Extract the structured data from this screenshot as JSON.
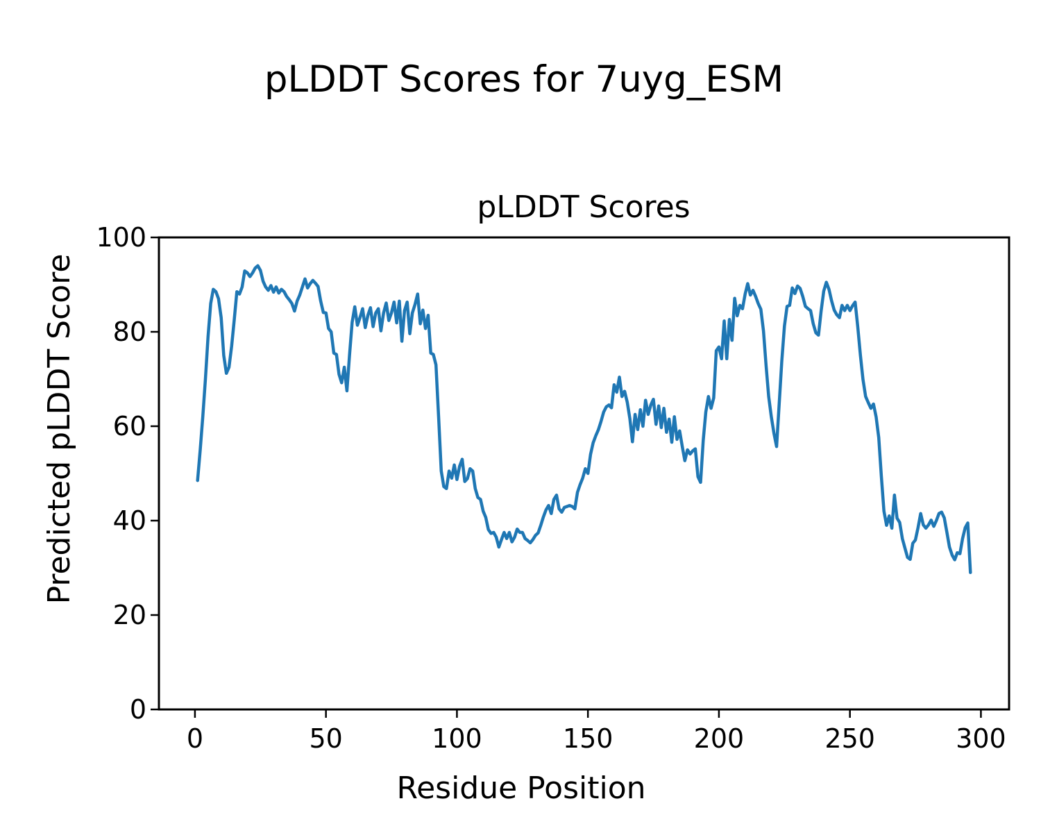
{
  "figure": {
    "suptitle": "pLDDT Scores for 7uyg_ESM",
    "background_color": "#ffffff"
  },
  "chart_data": {
    "type": "line",
    "title": "pLDDT Scores",
    "xlabel": "Residue Position",
    "ylabel": "Predicted pLDDT Score",
    "xlim": [
      -13.75,
      310.75
    ],
    "ylim": [
      0,
      100
    ],
    "xticks": [
      0,
      50,
      100,
      150,
      200,
      250,
      300
    ],
    "yticks": [
      0,
      20,
      40,
      60,
      80,
      100
    ],
    "grid": false,
    "legend_position": "none",
    "axis_color": "#000000",
    "series": [
      {
        "name": "pLDDT score",
        "color": "#1f77b4",
        "line_width": 4.5,
        "x_start": 1,
        "x_step": 1,
        "values": [
          48.5,
          55,
          62,
          70,
          79,
          86,
          89,
          88.5,
          87,
          83,
          75,
          71.2,
          72.5,
          77,
          82.5,
          88.5,
          88,
          89.5,
          92.9,
          92.5,
          91.7,
          92.5,
          93.5,
          94,
          93,
          90.7,
          89.5,
          88.8,
          89.8,
          88.4,
          89.5,
          88.2,
          89,
          88.5,
          87.5,
          86.8,
          86,
          84.4,
          86.5,
          87.8,
          89.5,
          91.2,
          89.3,
          90.2,
          90.9,
          90.3,
          89.6,
          86.5,
          84.1,
          84,
          80.7,
          80,
          75.5,
          75.2,
          71,
          69.2,
          72.5,
          67.5,
          75,
          82,
          85.3,
          81.4,
          83,
          84.9,
          80.9,
          83.5,
          85.1,
          81.1,
          84,
          84.9,
          80.2,
          84,
          86.1,
          82.4,
          84,
          86.3,
          81.9,
          86.5,
          78,
          84.5,
          86.3,
          79.6,
          84,
          85.8,
          88,
          81.7,
          84.6,
          80.7,
          83.5,
          75.5,
          75.2,
          73,
          62,
          50.5,
          47.2,
          46.8,
          50.5,
          49,
          51.8,
          48.7,
          51.5,
          53,
          48.3,
          48.9,
          51,
          50.5,
          46.8,
          44.9,
          44.5,
          42,
          40.7,
          38.1,
          37.3,
          37.5,
          36.5,
          34.4,
          36,
          37.5,
          36.2,
          37.5,
          35.5,
          36.5,
          38.2,
          37.5,
          37.5,
          36.2,
          35.8,
          35.3,
          36,
          36.9,
          37.4,
          39,
          40.8,
          42.3,
          43.2,
          41.5,
          44.5,
          45.4,
          42.5,
          41.8,
          42.8,
          43,
          43.2,
          43,
          42.5,
          46,
          47.6,
          49,
          51,
          50,
          54,
          56.5,
          58,
          59.3,
          61,
          63,
          64.1,
          64.5,
          63.9,
          68.8,
          67.2,
          70.4,
          66.3,
          67.4,
          65.1,
          61.6,
          56.7,
          62.5,
          59.3,
          63.5,
          60,
          65.5,
          62.5,
          64.5,
          65.7,
          60.4,
          64.3,
          59.7,
          63.8,
          58.7,
          61.5,
          56.6,
          62,
          57.2,
          59,
          55.7,
          52.7,
          55,
          54.1,
          54.8,
          55.2,
          49.3,
          48.1,
          57,
          63,
          66.3,
          63.8,
          66,
          76,
          76.8,
          74.3,
          82.3,
          74.3,
          82.6,
          78.2,
          87.1,
          83.4,
          85.6,
          84.9,
          88,
          90.2,
          87.8,
          88.8,
          87.5,
          86,
          84.8,
          80.2,
          72.8,
          66.3,
          62,
          58.5,
          55.7,
          64.6,
          73.8,
          81.2,
          85.4,
          85.6,
          89.3,
          88.1,
          89.7,
          89.2,
          87.5,
          85.4,
          84.9,
          84.5,
          81.7,
          79.8,
          79.3,
          84.3,
          88.6,
          90.5,
          89,
          86.6,
          84.6,
          83.6,
          83,
          85.6,
          84.5,
          85.6,
          84.5,
          85.5,
          86.3,
          81,
          75,
          69.9,
          66.3,
          65,
          63.8,
          64.7,
          62,
          57.6,
          49.3,
          42,
          39,
          41,
          38.4,
          45.4,
          40.5,
          39.6,
          36.2,
          34.2,
          32.2,
          31.8,
          35.2,
          35.9,
          38.5,
          41.5,
          39.1,
          38.4,
          39.1,
          40.1,
          38.8,
          40,
          41.5,
          41.8,
          40.6,
          37.6,
          34.4,
          32.7,
          31.7,
          33.2,
          33,
          36.2,
          38.5,
          39.5,
          29
        ]
      }
    ]
  }
}
